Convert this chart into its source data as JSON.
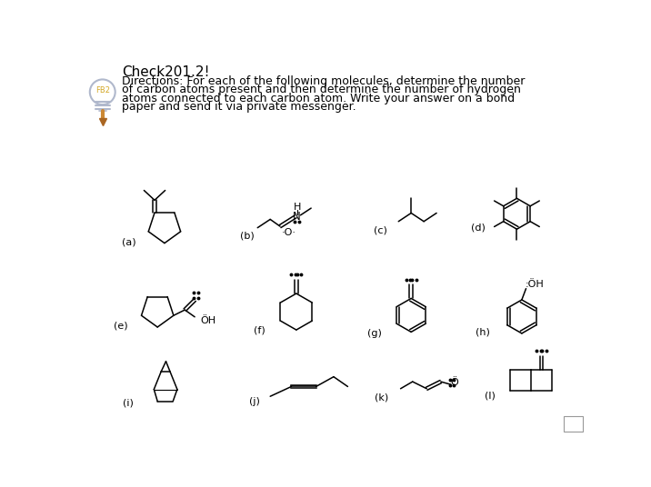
{
  "bg_color": "#ffffff",
  "text_color": "#000000",
  "title": "Check201.2!",
  "directions": [
    "Directions: For each of the following molecules, determine the number",
    "of carbon atoms present and then determine the number of hydrogen",
    "atoms connected to each carbon atom. Write your answer on a bond",
    "paper and send it via private messenger."
  ],
  "font_size_title": 11,
  "font_size_body": 9,
  "font_size_label": 8,
  "lw": 1.1
}
